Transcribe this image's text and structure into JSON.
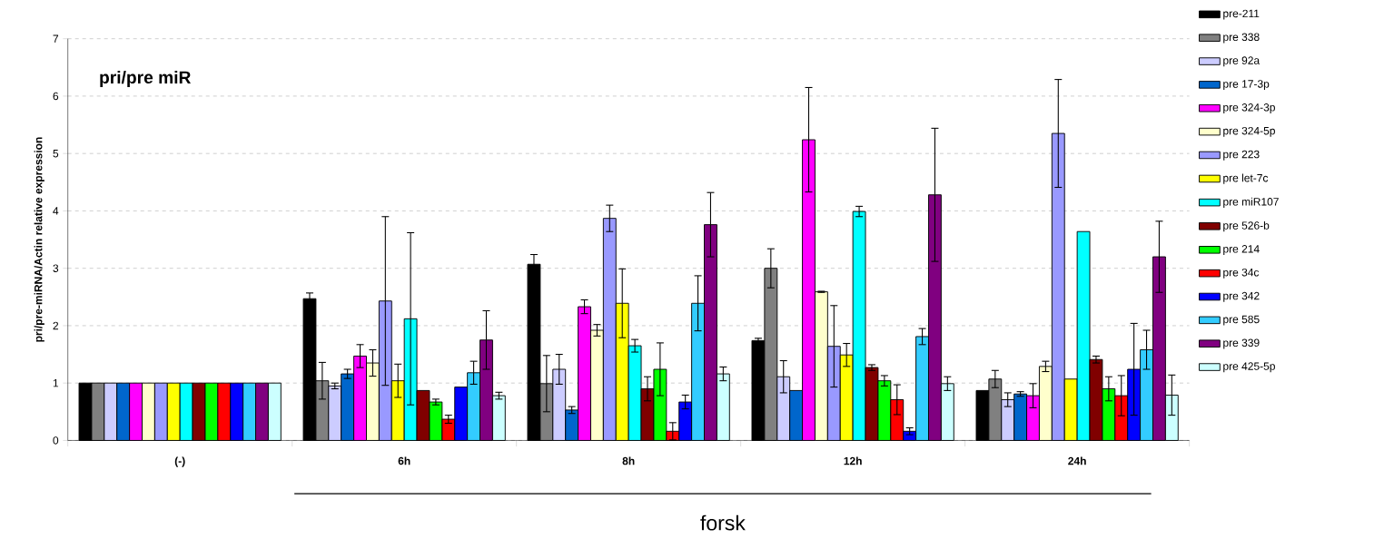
{
  "chart_data": {
    "type": "bar",
    "ylabel": "pri/pre-miRNA/Actin relative expression",
    "annotations": [
      "pri/pre miR",
      "forsk"
    ],
    "categories": [
      "(-)",
      "6h",
      "8h",
      "12h",
      "24h"
    ],
    "ylim": [
      0,
      7
    ],
    "yticks": [
      0,
      1,
      2,
      3,
      4,
      5,
      6,
      7
    ],
    "grid": "y",
    "legend": "right",
    "series": [
      {
        "name": "pre-211",
        "color": "#000000",
        "values": [
          1,
          2.47,
          3.07,
          1.74,
          0.87
        ],
        "errors": [
          null,
          0.1,
          0.17,
          0.04,
          null
        ]
      },
      {
        "name": "pre 338",
        "color": "#808080",
        "values": [
          1,
          1.04,
          0.99,
          3.0,
          1.07
        ],
        "errors": [
          null,
          0.32,
          0.49,
          0.34,
          0.15
        ]
      },
      {
        "name": "pre 92a",
        "color": "#ccccff",
        "values": [
          1,
          0.95,
          1.24,
          1.11,
          0.71
        ],
        "errors": [
          null,
          0.05,
          0.26,
          0.28,
          0.12
        ]
      },
      {
        "name": "pre 17-3p",
        "color": "#0066cc",
        "values": [
          1,
          1.16,
          0.53,
          0.87,
          0.81
        ],
        "errors": [
          null,
          0.08,
          0.06,
          null,
          0.04
        ]
      },
      {
        "name": "pre 324-3p",
        "color": "#ff00ff",
        "values": [
          1,
          1.47,
          2.33,
          5.24,
          0.78
        ],
        "errors": [
          null,
          0.2,
          0.12,
          0.91,
          0.21
        ]
      },
      {
        "name": "pre 324-5p",
        "color": "#ffffcc",
        "values": [
          1,
          1.35,
          1.92,
          2.59,
          1.29
        ],
        "errors": [
          null,
          0.23,
          0.1,
          0.01,
          0.09
        ]
      },
      {
        "name": "pre 223",
        "color": "#9999ff",
        "values": [
          1,
          2.43,
          3.87,
          1.64,
          5.35
        ],
        "errors": [
          null,
          1.47,
          0.23,
          0.71,
          0.94
        ]
      },
      {
        "name": "pre let-7c",
        "color": "#ffff00",
        "values": [
          1,
          1.04,
          2.39,
          1.49,
          1.07
        ],
        "errors": [
          null,
          0.29,
          0.6,
          0.2,
          null
        ]
      },
      {
        "name": "pre miR107",
        "color": "#00ffff",
        "values": [
          1,
          2.12,
          1.65,
          3.99,
          3.64
        ],
        "errors": [
          null,
          1.5,
          0.11,
          0.09,
          null
        ]
      },
      {
        "name": "pre 526-b",
        "color": "#800000",
        "values": [
          1,
          0.87,
          0.9,
          1.27,
          1.41
        ],
        "errors": [
          null,
          null,
          0.21,
          0.05,
          0.06
        ]
      },
      {
        "name": "pre 214",
        "color": "#00ff00",
        "values": [
          1,
          0.67,
          1.24,
          1.04,
          0.9
        ],
        "errors": [
          null,
          0.05,
          0.46,
          0.09,
          0.21
        ]
      },
      {
        "name": "pre 34c",
        "color": "#ff0000",
        "values": [
          1,
          0.37,
          0.16,
          0.71,
          0.78
        ],
        "errors": [
          null,
          0.07,
          0.15,
          0.26,
          0.35
        ]
      },
      {
        "name": "pre 342",
        "color": "#0000ff",
        "values": [
          1,
          0.93,
          0.67,
          0.16,
          1.24
        ],
        "errors": [
          null,
          null,
          0.12,
          0.06,
          0.8
        ]
      },
      {
        "name": "pre 585",
        "color": "#33ccff",
        "values": [
          1,
          1.18,
          2.39,
          1.81,
          1.58
        ],
        "errors": [
          null,
          0.2,
          0.48,
          0.14,
          0.34
        ]
      },
      {
        "name": "pre 339",
        "color": "#800080",
        "values": [
          1,
          1.75,
          3.76,
          4.28,
          3.2
        ],
        "errors": [
          null,
          0.51,
          0.56,
          1.16,
          0.62
        ]
      },
      {
        "name": "pre 425-5p",
        "color": "#ccffff",
        "values": [
          1,
          0.78,
          1.16,
          0.99,
          0.79
        ],
        "errors": [
          null,
          0.06,
          0.12,
          0.12,
          0.35
        ]
      }
    ]
  }
}
